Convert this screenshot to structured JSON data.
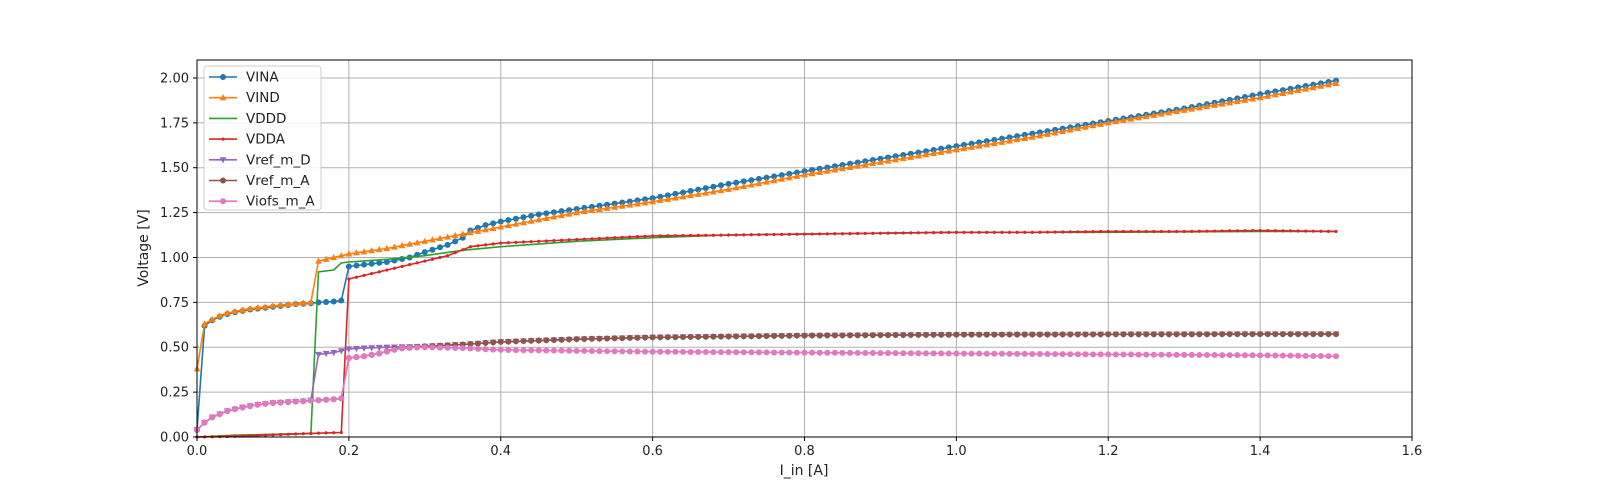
{
  "chart_data": {
    "type": "line",
    "xlabel": "I_in [A]",
    "ylabel": "Voltage [V]",
    "xlim": [
      0,
      1.6
    ],
    "ylim": [
      0,
      2.1
    ],
    "xticks": [
      "0.0",
      "0.2",
      "0.4",
      "0.6",
      "0.8",
      "1.0",
      "1.2",
      "1.4",
      "1.6"
    ],
    "yticks": [
      "0.00",
      "0.25",
      "0.50",
      "0.75",
      "1.00",
      "1.25",
      "1.50",
      "1.75",
      "2.00"
    ],
    "grid": true,
    "legend_position": "top-left",
    "series": [
      {
        "name": "VINA",
        "color": "#1f77b4",
        "marker": "circle",
        "points": [
          [
            0,
            0.04
          ],
          [
            0.01,
            0.62
          ],
          [
            0.02,
            0.65
          ],
          [
            0.03,
            0.67
          ],
          [
            0.04,
            0.685
          ],
          [
            0.05,
            0.695
          ],
          [
            0.07,
            0.71
          ],
          [
            0.09,
            0.72
          ],
          [
            0.11,
            0.73
          ],
          [
            0.13,
            0.74
          ],
          [
            0.15,
            0.745
          ],
          [
            0.16,
            0.75
          ],
          [
            0.17,
            0.752
          ],
          [
            0.18,
            0.755
          ],
          [
            0.19,
            0.76
          ],
          [
            0.2,
            0.95
          ],
          [
            0.22,
            0.96
          ],
          [
            0.25,
            0.975
          ],
          [
            0.28,
            1.0
          ],
          [
            0.3,
            1.03
          ],
          [
            0.33,
            1.07
          ],
          [
            0.35,
            1.11
          ],
          [
            0.36,
            1.15
          ],
          [
            0.38,
            1.18
          ],
          [
            0.4,
            1.2
          ],
          [
            0.45,
            1.24
          ],
          [
            0.5,
            1.27
          ],
          [
            0.6,
            1.33
          ],
          [
            0.7,
            1.41
          ],
          [
            0.8,
            1.48
          ],
          [
            0.9,
            1.55
          ],
          [
            1.0,
            1.62
          ],
          [
            1.1,
            1.69
          ],
          [
            1.2,
            1.76
          ],
          [
            1.3,
            1.83
          ],
          [
            1.4,
            1.91
          ],
          [
            1.5,
            1.985
          ]
        ]
      },
      {
        "name": "VIND",
        "color": "#ff7f0e",
        "marker": "triangle-up",
        "points": [
          [
            0,
            0.38
          ],
          [
            0.01,
            0.63
          ],
          [
            0.02,
            0.655
          ],
          [
            0.03,
            0.675
          ],
          [
            0.04,
            0.69
          ],
          [
            0.05,
            0.7
          ],
          [
            0.07,
            0.715
          ],
          [
            0.09,
            0.725
          ],
          [
            0.11,
            0.735
          ],
          [
            0.13,
            0.742
          ],
          [
            0.15,
            0.75
          ],
          [
            0.16,
            0.98
          ],
          [
            0.18,
            1.0
          ],
          [
            0.2,
            1.02
          ],
          [
            0.25,
            1.05
          ],
          [
            0.3,
            1.09
          ],
          [
            0.35,
            1.13
          ],
          [
            0.4,
            1.17
          ],
          [
            0.45,
            1.21
          ],
          [
            0.5,
            1.25
          ],
          [
            0.6,
            1.31
          ],
          [
            0.7,
            1.38
          ],
          [
            0.8,
            1.46
          ],
          [
            0.9,
            1.53
          ],
          [
            1.0,
            1.6
          ],
          [
            1.1,
            1.67
          ],
          [
            1.2,
            1.75
          ],
          [
            1.3,
            1.82
          ],
          [
            1.4,
            1.89
          ],
          [
            1.5,
            1.97
          ]
        ]
      },
      {
        "name": "VDDD",
        "color": "#2ca02c",
        "marker": "none",
        "points": [
          [
            0,
            0.0
          ],
          [
            0.05,
            0.01
          ],
          [
            0.1,
            0.015
          ],
          [
            0.15,
            0.02
          ],
          [
            0.16,
            0.92
          ],
          [
            0.18,
            0.93
          ],
          [
            0.19,
            0.97
          ],
          [
            0.2,
            0.975
          ],
          [
            0.25,
            0.99
          ],
          [
            0.3,
            1.01
          ],
          [
            0.35,
            1.04
          ],
          [
            0.4,
            1.06
          ],
          [
            0.5,
            1.09
          ],
          [
            0.6,
            1.11
          ],
          [
            0.7,
            1.125
          ],
          [
            0.8,
            1.13
          ],
          [
            0.9,
            1.135
          ],
          [
            1.0,
            1.14
          ],
          [
            1.2,
            1.14
          ],
          [
            1.4,
            1.145
          ],
          [
            1.5,
            1.145
          ]
        ]
      },
      {
        "name": "VDDA",
        "color": "#d62728",
        "marker": "point",
        "points": [
          [
            0,
            0.0
          ],
          [
            0.03,
            0.002
          ],
          [
            0.06,
            0.005
          ],
          [
            0.09,
            0.01
          ],
          [
            0.12,
            0.015
          ],
          [
            0.15,
            0.02
          ],
          [
            0.17,
            0.023
          ],
          [
            0.19,
            0.025
          ],
          [
            0.2,
            0.88
          ],
          [
            0.22,
            0.9
          ],
          [
            0.25,
            0.93
          ],
          [
            0.3,
            0.98
          ],
          [
            0.33,
            1.01
          ],
          [
            0.36,
            1.06
          ],
          [
            0.4,
            1.08
          ],
          [
            0.5,
            1.1
          ],
          [
            0.6,
            1.12
          ],
          [
            0.7,
            1.125
          ],
          [
            0.8,
            1.13
          ],
          [
            0.9,
            1.135
          ],
          [
            1.0,
            1.14
          ],
          [
            1.1,
            1.14
          ],
          [
            1.2,
            1.145
          ],
          [
            1.3,
            1.145
          ],
          [
            1.4,
            1.15
          ],
          [
            1.5,
            1.145
          ]
        ]
      },
      {
        "name": "Vref_m_D",
        "color": "#9467bd",
        "marker": "triangle-down",
        "points": [
          [
            0,
            0.04
          ],
          [
            0.01,
            0.08
          ],
          [
            0.02,
            0.11
          ],
          [
            0.04,
            0.145
          ],
          [
            0.06,
            0.165
          ],
          [
            0.08,
            0.18
          ],
          [
            0.1,
            0.19
          ],
          [
            0.12,
            0.195
          ],
          [
            0.14,
            0.2
          ],
          [
            0.15,
            0.205
          ],
          [
            0.16,
            0.46
          ],
          [
            0.18,
            0.47
          ],
          [
            0.2,
            0.49
          ],
          [
            0.22,
            0.495
          ],
          [
            0.25,
            0.5
          ],
          [
            0.3,
            0.505
          ],
          [
            0.35,
            0.515
          ],
          [
            0.4,
            0.53
          ],
          [
            0.5,
            0.545
          ],
          [
            0.6,
            0.555
          ],
          [
            0.8,
            0.565
          ],
          [
            1.0,
            0.57
          ],
          [
            1.2,
            0.572
          ],
          [
            1.4,
            0.573
          ],
          [
            1.5,
            0.573
          ]
        ]
      },
      {
        "name": "Vref_m_A",
        "color": "#8c564b",
        "marker": "circle",
        "points": [
          [
            0,
            0.04
          ],
          [
            0.01,
            0.08
          ],
          [
            0.02,
            0.11
          ],
          [
            0.04,
            0.145
          ],
          [
            0.06,
            0.165
          ],
          [
            0.08,
            0.18
          ],
          [
            0.1,
            0.19
          ],
          [
            0.12,
            0.195
          ],
          [
            0.14,
            0.2
          ],
          [
            0.16,
            0.205
          ],
          [
            0.18,
            0.21
          ],
          [
            0.19,
            0.215
          ],
          [
            0.2,
            0.44
          ],
          [
            0.22,
            0.45
          ],
          [
            0.24,
            0.465
          ],
          [
            0.26,
            0.49
          ],
          [
            0.3,
            0.505
          ],
          [
            0.35,
            0.515
          ],
          [
            0.4,
            0.53
          ],
          [
            0.5,
            0.545
          ],
          [
            0.6,
            0.555
          ],
          [
            0.8,
            0.565
          ],
          [
            1.0,
            0.57
          ],
          [
            1.2,
            0.572
          ],
          [
            1.4,
            0.573
          ],
          [
            1.5,
            0.573
          ]
        ]
      },
      {
        "name": "Viofs_m_A",
        "color": "#e377c2",
        "marker": "circle",
        "points": [
          [
            0,
            0.04
          ],
          [
            0.01,
            0.08
          ],
          [
            0.02,
            0.11
          ],
          [
            0.04,
            0.145
          ],
          [
            0.06,
            0.165
          ],
          [
            0.08,
            0.18
          ],
          [
            0.1,
            0.19
          ],
          [
            0.12,
            0.195
          ],
          [
            0.14,
            0.2
          ],
          [
            0.16,
            0.205
          ],
          [
            0.18,
            0.21
          ],
          [
            0.19,
            0.215
          ],
          [
            0.2,
            0.44
          ],
          [
            0.22,
            0.45
          ],
          [
            0.25,
            0.475
          ],
          [
            0.27,
            0.495
          ],
          [
            0.3,
            0.5
          ],
          [
            0.35,
            0.495
          ],
          [
            0.4,
            0.485
          ],
          [
            0.5,
            0.48
          ],
          [
            0.6,
            0.475
          ],
          [
            0.8,
            0.47
          ],
          [
            1.0,
            0.465
          ],
          [
            1.2,
            0.46
          ],
          [
            1.4,
            0.455
          ],
          [
            1.5,
            0.45
          ]
        ]
      }
    ]
  }
}
